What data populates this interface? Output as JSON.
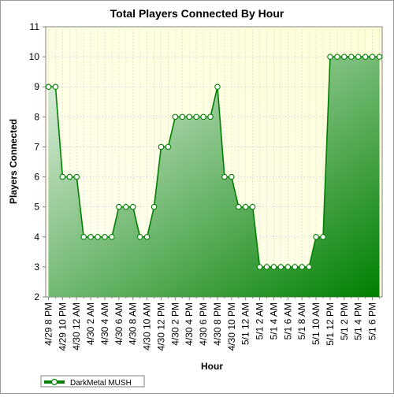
{
  "chart_data": {
    "type": "area",
    "title": "Total Players Connected By Hour",
    "xlabel": "Hour",
    "ylabel": "Players Connected",
    "ylim": [
      2,
      11
    ],
    "yticks": [
      2,
      3,
      4,
      5,
      6,
      7,
      8,
      9,
      10,
      11
    ],
    "grid": true,
    "legend_position": "bottom-left",
    "x_tick_labels": [
      "4/29 8 PM",
      "4/29 10 PM",
      "4/30 12 AM",
      "4/30 2 AM",
      "4/30 4 AM",
      "4/30 6 AM",
      "4/30 8 AM",
      "4/30 10 AM",
      "4/30 12 PM",
      "4/30 2 PM",
      "4/30 4 PM",
      "4/30 6 PM",
      "4/30 8 PM",
      "4/30 10 PM",
      "5/1 12 AM",
      "5/1 2 AM",
      "5/1 4 AM",
      "5/1 6 AM",
      "5/1 8 AM",
      "5/1 10 AM",
      "5/1 12 PM",
      "5/1 2 PM",
      "5/1 4 PM",
      "5/1 6 PM"
    ],
    "series": [
      {
        "name": "DarkMetal MUSH",
        "color": "#008000",
        "values": [
          9,
          9,
          6,
          6,
          6,
          4,
          4,
          4,
          4,
          4,
          5,
          5,
          5,
          4,
          4,
          5,
          7,
          7,
          8,
          8,
          8,
          8,
          8,
          8,
          9,
          6,
          6,
          5,
          5,
          5,
          3,
          3,
          3,
          3,
          3,
          3,
          3,
          3,
          4,
          4,
          10,
          10,
          10,
          10,
          10,
          10,
          10,
          10
        ]
      }
    ]
  },
  "colors": {
    "plot_background_top": "#fffff2",
    "plot_background_right": "#ffffd8",
    "area_light": "#e6f2e6",
    "area_dark": "#008000",
    "line": "#008000"
  }
}
